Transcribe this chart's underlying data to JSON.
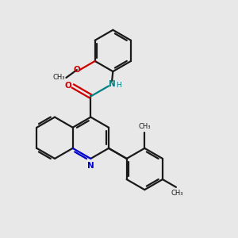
{
  "bg_color": "#e8e8e8",
  "bond_color": "#1a1a1a",
  "nitrogen_color": "#0000cc",
  "oxygen_color": "#cc0000",
  "nh_color": "#008080",
  "font_size": 7.5,
  "linewidth": 1.6,
  "fig_size": [
    3.0,
    3.0
  ],
  "dpi": 100,
  "xlim": [
    0,
    10
  ],
  "ylim": [
    0,
    10
  ]
}
